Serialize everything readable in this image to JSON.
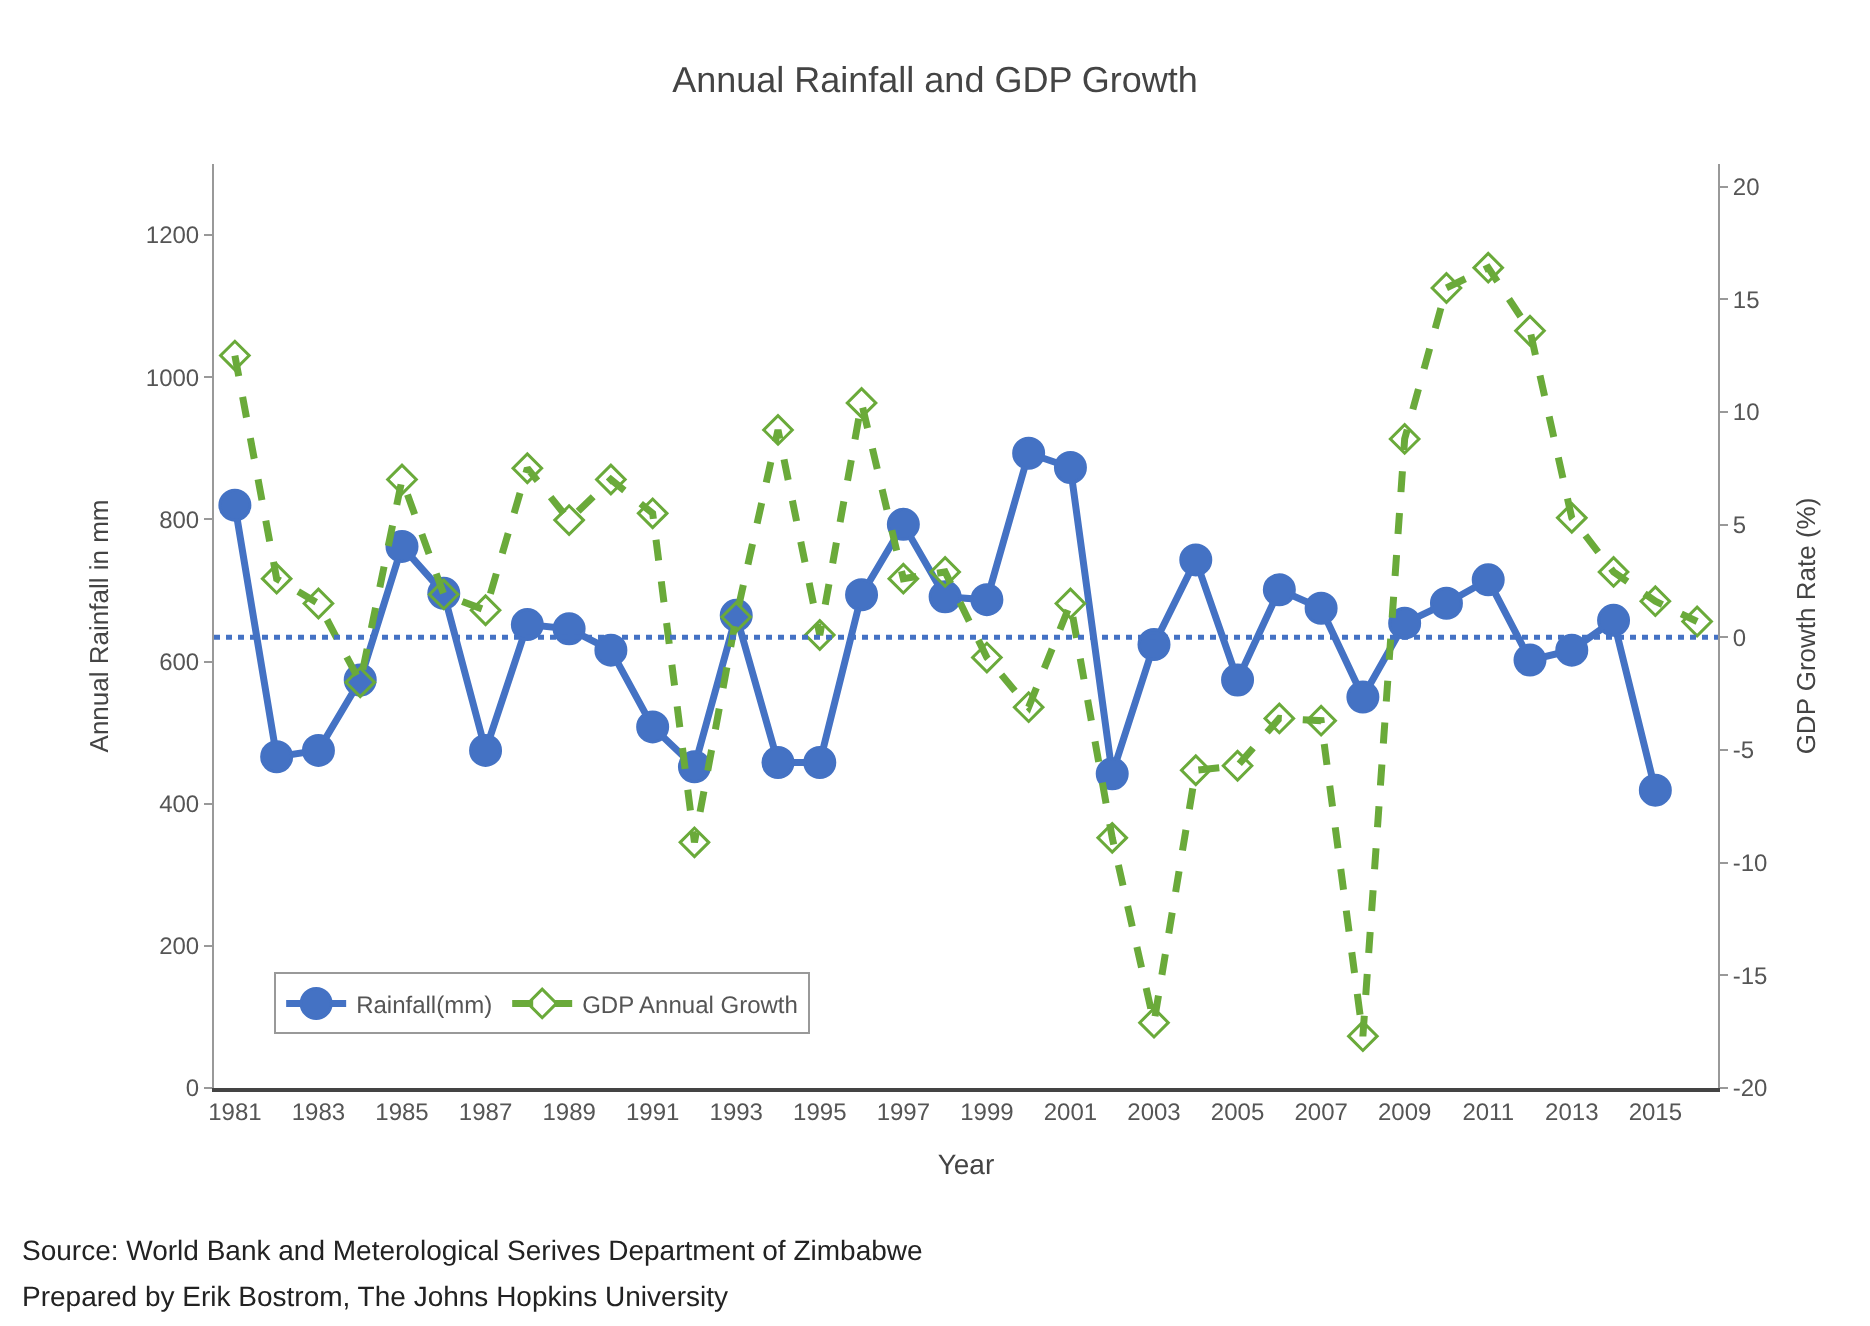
{
  "chart_data": {
    "type": "line",
    "title": "Annual Rainfall and GDP Growth",
    "xlabel": "Year",
    "ylabel": "Annual Rainfall in mm",
    "y2label": "GDP Growth Rate (%)",
    "xlim": [
      1980.5,
      2016.5
    ],
    "xticks": [
      1981,
      1983,
      1985,
      1987,
      1989,
      1991,
      1993,
      1995,
      1997,
      1999,
      2001,
      2003,
      2005,
      2007,
      2009,
      2011,
      2013,
      2015
    ],
    "ylim": [
      0,
      1300
    ],
    "yticks": [
      0,
      200,
      400,
      600,
      800,
      1000,
      1200
    ],
    "y2lim": [
      -20,
      21
    ],
    "y2ticks": [
      -20,
      -15,
      -10,
      -5,
      0,
      5,
      10,
      15,
      20
    ],
    "grid": false,
    "legend": "bottom left",
    "series": [
      {
        "name": "Rainfall(mm)",
        "color": "#4472c4",
        "marker": "circle",
        "line_style": "solid",
        "x": [
          1981,
          1982,
          1983,
          1984,
          1985,
          1986,
          1987,
          1988,
          1989,
          1990,
          1991,
          1992,
          1993,
          1994,
          1995,
          1996,
          1997,
          1998,
          1999,
          2000,
          2001,
          2002,
          2003,
          2004,
          2005,
          2006,
          2007,
          2008,
          2009,
          2010,
          2011,
          2012,
          2013,
          2014,
          2015
        ],
        "values": [
          820,
          466,
          475,
          574,
          762,
          696,
          475,
          652,
          646,
          616,
          508,
          452,
          665,
          458,
          458,
          694,
          793,
          691,
          687,
          893,
          873,
          442,
          624,
          743,
          574,
          701,
          675,
          550,
          654,
          682,
          715,
          602,
          616,
          658,
          419
        ]
      },
      {
        "name": "GDP Annual Growth",
        "color": "#6aaa3a",
        "marker": "diamond",
        "line_style": "dashed",
        "axis": "y2",
        "x": [
          1981,
          1982,
          1983,
          1984,
          1985,
          1986,
          1987,
          1988,
          1989,
          1990,
          1991,
          1992,
          1993,
          1994,
          1995,
          1996,
          1997,
          1998,
          1999,
          2000,
          2001,
          2002,
          2003,
          2004,
          2005,
          2006,
          2007,
          2008,
          2009,
          2010,
          2011,
          2012,
          2013,
          2014,
          2015,
          2016
        ],
        "values": [
          12.5,
          2.6,
          1.5,
          -2.0,
          7.0,
          1.9,
          1.2,
          7.5,
          5.2,
          7.0,
          5.5,
          -9.1,
          0.9,
          9.2,
          0.1,
          10.4,
          2.6,
          2.9,
          -0.9,
          -3.1,
          1.5,
          -8.9,
          -17.1,
          -5.9,
          -5.7,
          -3.6,
          -3.7,
          -17.7,
          8.8,
          15.5,
          16.4,
          13.6,
          5.3,
          2.9,
          1.6,
          0.7
        ]
      }
    ],
    "ref_lines": [
      {
        "axis": "y2",
        "value": 0,
        "color": "#4472c4",
        "line_style": "dotted"
      }
    ],
    "annotations": [
      "Source: World Bank and Meterological Serives Department of Zimbabwe",
      "Prepared by Erik Bostrom, The Johns Hopkins University"
    ]
  }
}
